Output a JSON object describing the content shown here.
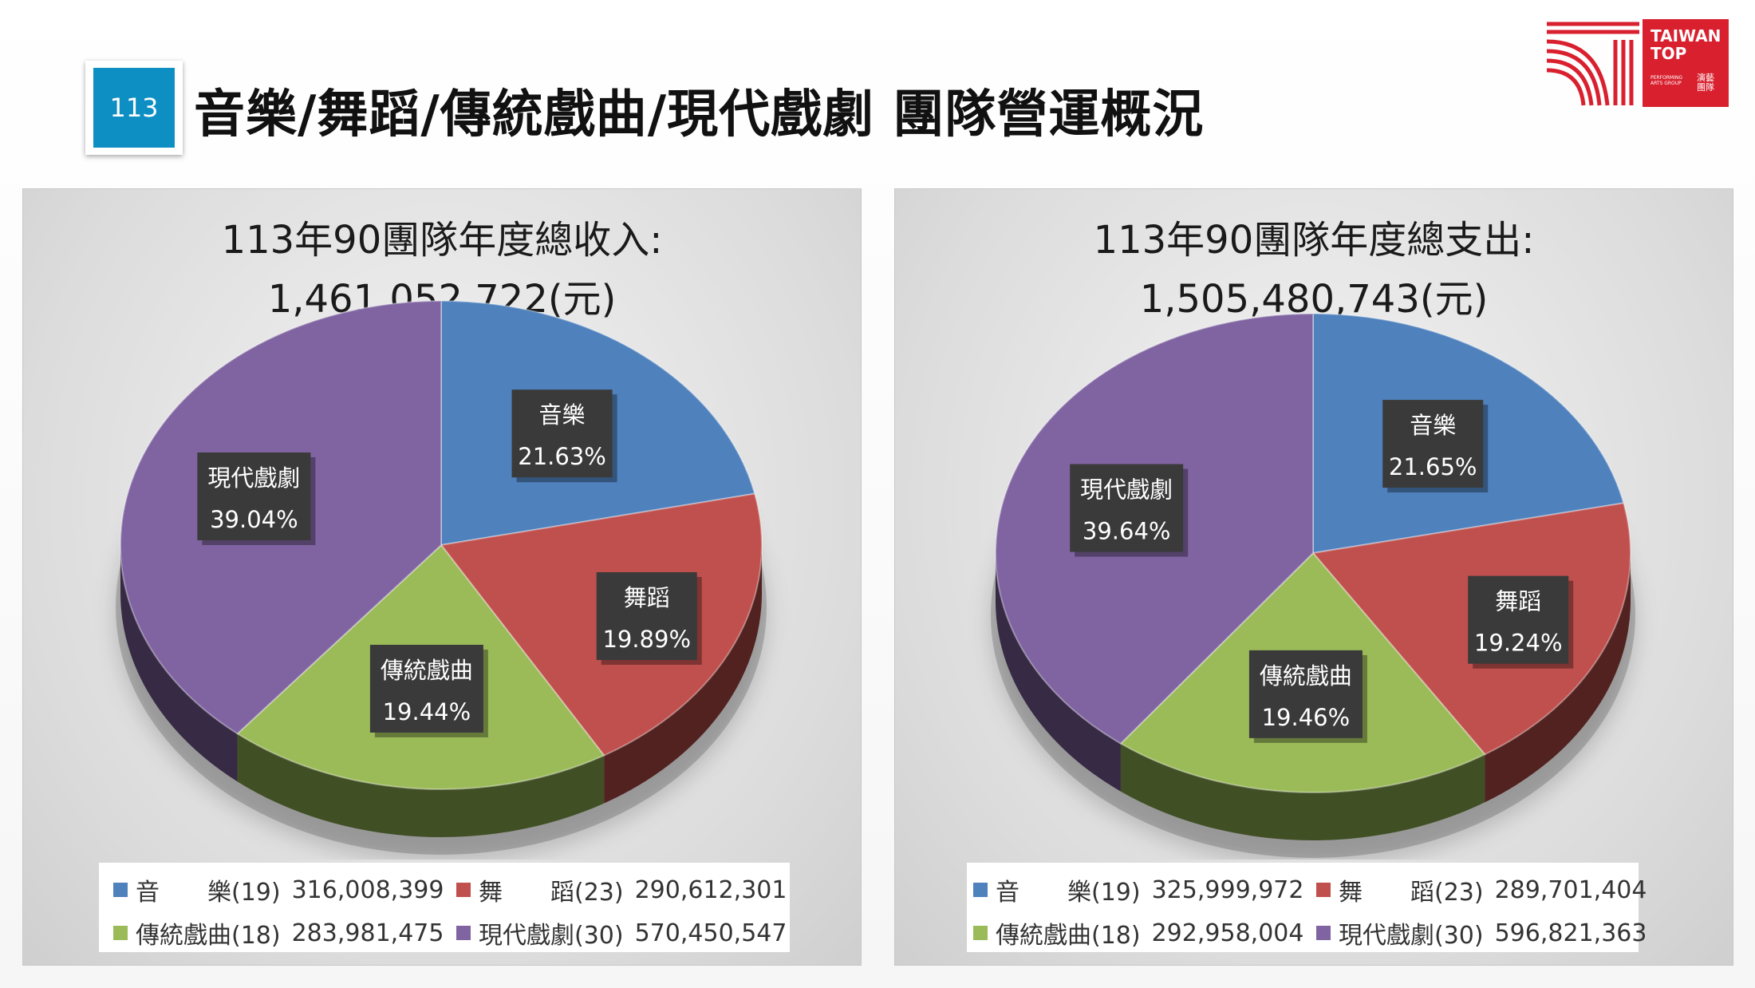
{
  "slide": {
    "page_number": "113",
    "title": "音樂/舞蹈/傳統戲曲/現代戲劇 團隊營運概況"
  },
  "logo": {
    "text_line1": "TAIWAN",
    "text_line2": "TOP",
    "small_en": "PERFORMING ARTS GROUP",
    "small_zh": "演藝團隊"
  },
  "colors": {
    "music": "#4f81bd",
    "dance": "#c0504d",
    "traditional": "#9bbb59",
    "modern": "#8064a2"
  },
  "chart_data": [
    {
      "type": "pie",
      "title_line1": "113年90團隊年度總收入:",
      "title_line2": "1,461,052,722(元)",
      "slices": [
        {
          "label": "音樂",
          "percent": "21.63%",
          "value": 316008399,
          "legend_name": "音　　樂(19)",
          "legend_value": "316,008,399"
        },
        {
          "label": "舞蹈",
          "percent": "19.89%",
          "value": 290612301,
          "legend_name": "舞　　蹈(23)",
          "legend_value": "290,612,301"
        },
        {
          "label": "傳統戲曲",
          "percent": "19.44%",
          "value": 283981475,
          "legend_name": "傳統戲曲(18)",
          "legend_value": "283,981,475"
        },
        {
          "label": "現代戲劇",
          "percent": "39.04%",
          "value": 570450547,
          "legend_name": "現代戲劇(30)",
          "legend_value": "570,450,547"
        }
      ]
    },
    {
      "type": "pie",
      "title_line1": "113年90團隊年度總支出:",
      "title_line2": "1,505,480,743(元)",
      "slices": [
        {
          "label": "音樂",
          "percent": "21.65%",
          "value": 325999972,
          "legend_name": "音　　樂(19)",
          "legend_value": "325,999,972"
        },
        {
          "label": "舞蹈",
          "percent": "19.24%",
          "value": 289701404,
          "legend_name": "舞　　蹈(23)",
          "legend_value": "289,701,404"
        },
        {
          "label": "傳統戲曲",
          "percent": "19.46%",
          "value": 292958004,
          "legend_name": "傳統戲曲(18)",
          "legend_value": "292,958,004"
        },
        {
          "label": "現代戲劇",
          "percent": "39.64%",
          "value": 596821363,
          "legend_name": "現代戲劇(30)",
          "legend_value": "596,821,363"
        }
      ]
    }
  ]
}
